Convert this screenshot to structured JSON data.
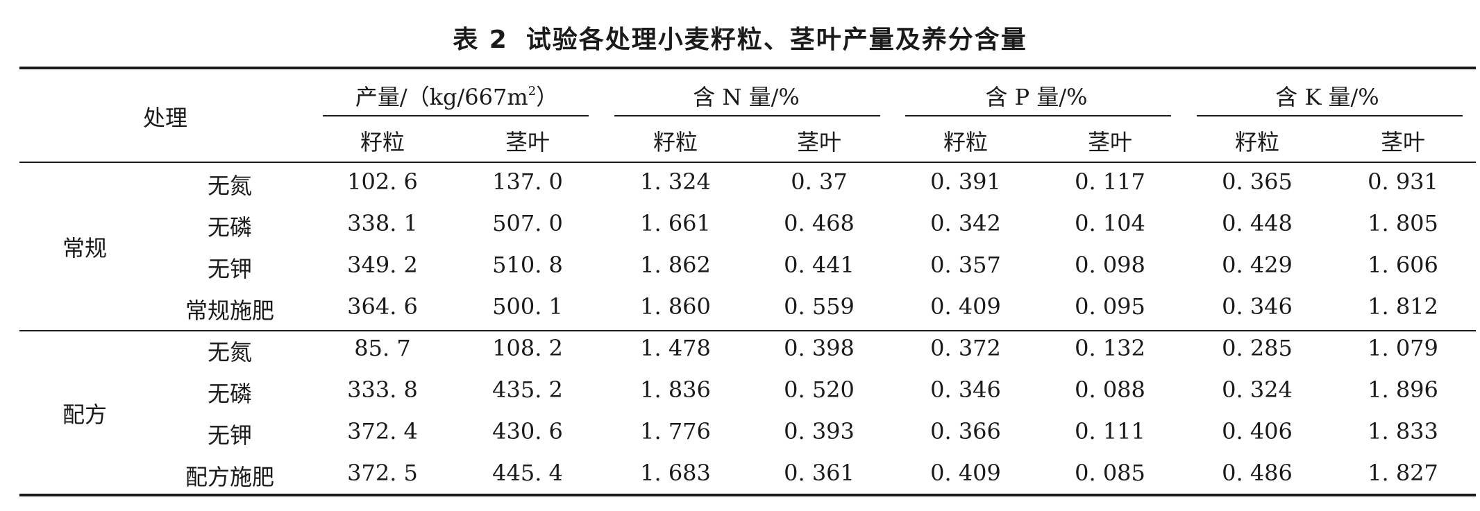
{
  "table": {
    "title_num": "表 2",
    "title": "试验各处理小麦籽粒、茎叶产量及养分含量",
    "treatment_header": "处理",
    "groups": [
      {
        "label": "产量/（kg/667m",
        "sup": "2",
        "tail": "）"
      },
      {
        "label": "含 N 量/%"
      },
      {
        "label": "含 P 量/%"
      },
      {
        "label": "含 K 量/%"
      }
    ],
    "subheaders": [
      "籽粒",
      "茎叶",
      "籽粒",
      "茎叶",
      "籽粒",
      "茎叶",
      "籽粒",
      "茎叶"
    ],
    "sections": [
      {
        "label": "常规",
        "rows": [
          {
            "name": "无氮",
            "values": [
              "102. 6",
              "137. 0",
              "1. 324",
              "0. 37",
              "0. 391",
              "0. 117",
              "0. 365",
              "0. 931"
            ]
          },
          {
            "name": "无磷",
            "values": [
              "338. 1",
              "507. 0",
              "1. 661",
              "0. 468",
              "0. 342",
              "0. 104",
              "0. 448",
              "1. 805"
            ]
          },
          {
            "name": "无钾",
            "values": [
              "349. 2",
              "510. 8",
              "1. 862",
              "0. 441",
              "0. 357",
              "0. 098",
              "0. 429",
              "1. 606"
            ]
          },
          {
            "name": "常规施肥",
            "values": [
              "364. 6",
              "500. 1",
              "1. 860",
              "0. 559",
              "0. 409",
              "0. 095",
              "0. 346",
              "1. 812"
            ]
          }
        ]
      },
      {
        "label": "配方",
        "rows": [
          {
            "name": "无氮",
            "values": [
              "85. 7",
              "108. 2",
              "1. 478",
              "0. 398",
              "0. 372",
              "0. 132",
              "0. 285",
              "1. 079"
            ]
          },
          {
            "name": "无磷",
            "values": [
              "333. 8",
              "435. 2",
              "1. 836",
              "0. 520",
              "0. 346",
              "0. 088",
              "0. 324",
              "1. 896"
            ]
          },
          {
            "name": "无钾",
            "values": [
              "372. 4",
              "430. 6",
              "1. 776",
              "0. 393",
              "0. 366",
              "0. 111",
              "0. 406",
              "1. 833"
            ]
          },
          {
            "name": "配方施肥",
            "values": [
              "372. 5",
              "445. 4",
              "1. 683",
              "0. 361",
              "0. 409",
              "0. 085",
              "0. 486",
              "1. 827"
            ]
          }
        ]
      }
    ]
  }
}
